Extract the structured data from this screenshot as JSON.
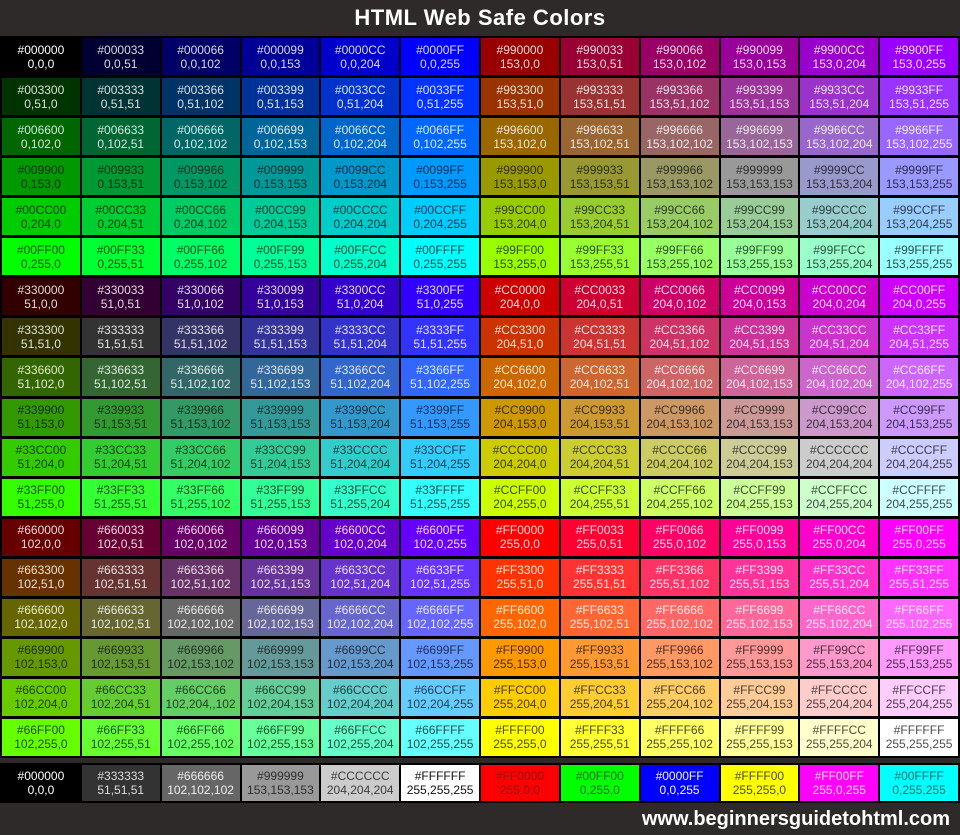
{
  "title": "HTML Web Safe Colors",
  "footer": {
    "url": "www.beginnersguidetohtml.com"
  },
  "colors": {
    "page_background": "#2E2A2A",
    "grid_lines": "#000000",
    "title_text": "#FFFFFF",
    "footer_text": "#FFFFFF"
  },
  "chart_data": {
    "type": "table",
    "title": "HTML Web Safe Colors",
    "description_format": "each cell = hex code | decimal R,G,B (| optional explicit text color)",
    "rows": [
      [
        "#000000|0,0,0",
        "#000033|0,0,51",
        "#000066|0,0,102",
        "#000099|0,0,153",
        "#0000CC|0,0,204",
        "#0000FF|0,0,255",
        "#990000|153,0,0",
        "#990033|153,0,51",
        "#990066|153,0,102",
        "#990099|153,0,153",
        "#9900CC|153,0,204",
        "#9900FF|153,0,255"
      ],
      [
        "#003300|0,51,0",
        "#003333|0,51,51",
        "#003366|0,51,102",
        "#003399|0,51,153",
        "#0033CC|0,51,204",
        "#0033FF|0,51,255",
        "#993300|153,51,0",
        "#993333|153,51,51",
        "#993366|153,51,102",
        "#993399|153,51,153",
        "#9933CC|153,51,204",
        "#9933FF|153,51,255"
      ],
      [
        "#006600|0,102,0",
        "#006633|0,102,51",
        "#006666|0,102,102",
        "#006699|0,102,153",
        "#0066CC|0,102,204",
        "#0066FF|0,102,255",
        "#996600|153,102,0",
        "#996633|153,102,51",
        "#996666|153,102,102",
        "#996699|153,102,153",
        "#9966CC|153,102,204",
        "#9966FF|153,102,255"
      ],
      [
        "#009900|0,153,0",
        "#009933|0,153,51",
        "#009966|0,153,102",
        "#009999|0,153,153",
        "#0099CC|0,153,204",
        "#0099FF|0,153,255",
        "#999900|153,153,0",
        "#999933|153,153,51",
        "#999966|153,153,102",
        "#999999|153,153,153",
        "#9999CC|153,153,204",
        "#9999FF|153,153,255"
      ],
      [
        "#00CC00|0,204,0",
        "#00CC33|0,204,51",
        "#00CC66|0,204,102",
        "#00CC99|0,204,153",
        "#00CCCC|0,204,204",
        "#00CCFF|0,204,255",
        "#99CC00|153,204,0",
        "#99CC33|153,204,51",
        "#99CC66|153,204,102",
        "#99CC99|153,204,153",
        "#99CCCC|153,204,204",
        "#99CCFF|153,204,255"
      ],
      [
        "#00FF00|0,255,0",
        "#00FF33|0,255,51",
        "#00FF66|0,255,102",
        "#00FF99|0,255,153",
        "#00FFCC|0,255,204",
        "#00FFFF|0,255,255",
        "#99FF00|153,255,0",
        "#99FF33|153,255,51",
        "#99FF66|153,255,102",
        "#99FF99|153,255,153",
        "#99FFCC|153,255,204",
        "#99FFFF|153,255,255"
      ],
      [
        "#330000|51,0,0",
        "#330033|51,0,51",
        "#330066|51,0,102",
        "#330099|51,0,153",
        "#3300CC|51,0,204",
        "#3300FF|51,0,255",
        "#CC0000|204,0,0",
        "#CC0033|204,0,51",
        "#CC0066|204,0,102",
        "#CC0099|204,0,153",
        "#CC00CC|204,0,204",
        "#CC00FF|204,0,255"
      ],
      [
        "#333300|51,51,0",
        "#333333|51,51,51",
        "#333366|51,51,102",
        "#333399|51,51,153",
        "#3333CC|51,51,204",
        "#3333FF|51,51,255",
        "#CC3300|204,51,0",
        "#CC3333|204,51,51",
        "#CC3366|204,51,102",
        "#CC3399|204,51,153",
        "#CC33CC|204,51,204",
        "#CC33FF|204,51,255"
      ],
      [
        "#336600|51,102,0",
        "#336633|51,102,51",
        "#336666|51,102,102",
        "#336699|51,102,153",
        "#3366CC|51,102,204",
        "#3366FF|51,102,255",
        "#CC6600|204,102,0",
        "#CC6633|204,102,51",
        "#CC6666|204,102,102",
        "#CC6699|204,102,153",
        "#CC66CC|204,102,204",
        "#CC66FF|204,102,255"
      ],
      [
        "#339900|51,153,0",
        "#339933|51,153,51",
        "#339966|51,153,102",
        "#339999|51,153,153",
        "#3399CC|51,153,204",
        "#3399FF|51,153,255",
        "#CC9900|204,153,0",
        "#CC9933|204,153,51",
        "#CC9966|204,153,102",
        "#CC9999|204,153,153",
        "#CC99CC|204,153,204",
        "#CC99FF|204,153,255"
      ],
      [
        "#33CC00|51,204,0",
        "#33CC33|51,204,51",
        "#33CC66|51,204,102",
        "#33CC99|51,204,153",
        "#33CCCC|51,204,204",
        "#33CCFF|51,204,255",
        "#CCCC00|204,204,0",
        "#CCCC33|204,204,51",
        "#CCCC66|204,204,102",
        "#CCCC99|204,204,153",
        "#CCCCCC|204,204,204",
        "#CCCCFF|204,204,255"
      ],
      [
        "#33FF00|51,255,0",
        "#33FF33|51,255,51",
        "#33FF66|51,255,102",
        "#33FF99|51,255,153",
        "#33FFCC|51,255,204",
        "#33FFFF|51,255,255",
        "#CCFF00|204,255,0",
        "#CCFF33|204,255,51",
        "#CCFF66|204,255,102",
        "#CCFF99|204,255,153",
        "#CCFFCC|204,255,204",
        "#CCFFFF|204,255,255"
      ],
      [
        "#660000|102,0,0",
        "#660033|102,0,51",
        "#660066|102,0,102",
        "#660099|102,0,153",
        "#6600CC|102,0,204",
        "#6600FF|102,0,255",
        "#FF0000|255,0,0",
        "#FF0033|255,0,51",
        "#FF0066|255,0,102",
        "#FF0099|255,0,153",
        "#FF00CC|255,0,204",
        "#FF00FF|255,0,255"
      ],
      [
        "#663300|102,51,0",
        "#663333|102,51,51",
        "#663366|102,51,102",
        "#663399|102,51,153",
        "#6633CC|102,51,204",
        "#6633FF|102,51,255",
        "#FF3300|255,51,0",
        "#FF3333|255,51,51",
        "#FF3366|255,51,102",
        "#FF3399|255,51,153",
        "#FF33CC|255,51,204",
        "#FF33FF|255,51,255"
      ],
      [
        "#666600|102,102,0",
        "#666633|102,102,51",
        "#666666|102,102,102",
        "#666699|102,102,153",
        "#6666CC|102,102,204",
        "#6666FF|102,102,255",
        "#FF6600|255,102,0",
        "#FF6633|255,102,51",
        "#FF6666|255,102,102",
        "#FF6699|255,102,153",
        "#FF66CC|255,102,204",
        "#FF66FF|255,102,255"
      ],
      [
        "#669900|102,153,0",
        "#669933|102,153,51",
        "#669966|102,153,102",
        "#669999|102,153,153",
        "#6699CC|102,153,204",
        "#6699FF|102,153,255",
        "#FF9900|255,153,0",
        "#FF9933|255,153,51",
        "#FF9966|255,153,102",
        "#FF9999|255,153,153",
        "#FF99CC|255,153,204",
        "#FF99FF|255,153,255"
      ],
      [
        "#66CC00|102,204,0",
        "#66CC33|102,204,51",
        "#66CC66|102,204,,102",
        "#66CC99|102,204,153",
        "#66CCCC|102,204,204",
        "#66CCFF|102,204,255",
        "#FFCC00|255,204,0",
        "#FFCC33|255,204,51",
        "#FFCC66|255,204,102",
        "#FFCC99|255,204,153",
        "#FFCCCC|255,204,204",
        "#FFCCFF|255,204,255"
      ],
      [
        "#66FF00|102,255,0",
        "#66FF33|102,255,51",
        "#66FF66|102,255,102",
        "#66FF99|102,255,153",
        "#66FFCC|102,255,204",
        "#66FFFF|102,255,255",
        "#FFFF00|255,255,0",
        "#FFFF33|255,255,51",
        "#FFFF66|255,255,102",
        "#FFFF99|255,255,153",
        "#FFFFCC|255,255,204",
        "#FFFFFF|255,255,255"
      ]
    ],
    "key_row": [
      "#000000|0,0,0|#FFFFFF",
      "#333333|51,51,51|#DDDDDD",
      "#666666|102,102,102|#EEEEEE",
      "#999999|153,153,153|#2E2E2E",
      "#CCCCCC|204,204,204|#3D3D3D",
      "#FFFFFF|255,255,255|#111111",
      "#FF0000|255,0,0|#8F1010",
      "#00FF00|0,255,0|#0B6B0B",
      "#0000FF|0,0,255|#F4F4FF",
      "#FFFF00|255,255,0|#4C4C38",
      "#FF00FF|255,0,255|#FFDCF9",
      "#00FFFF|0,255,255|#0E6E6E"
    ]
  }
}
